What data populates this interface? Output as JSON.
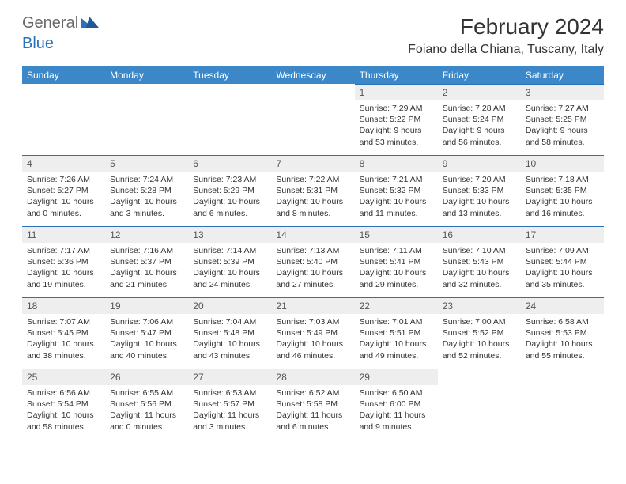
{
  "brand": {
    "part1": "General",
    "part2": "Blue"
  },
  "title": "February 2024",
  "location": "Foiano della Chiana, Tuscany, Italy",
  "colors": {
    "header_bg": "#3b87c8",
    "header_text": "#ffffff",
    "daynum_bg": "#eeeeee",
    "daynum_border": "#2a71b8",
    "body_text": "#333333",
    "logo_gray": "#6a6a6a",
    "logo_blue": "#2a71b8"
  },
  "day_headers": [
    "Sunday",
    "Monday",
    "Tuesday",
    "Wednesday",
    "Thursday",
    "Friday",
    "Saturday"
  ],
  "weeks": [
    [
      null,
      null,
      null,
      null,
      {
        "n": "1",
        "sunrise": "7:29 AM",
        "sunset": "5:22 PM",
        "daylight": "9 hours and 53 minutes."
      },
      {
        "n": "2",
        "sunrise": "7:28 AM",
        "sunset": "5:24 PM",
        "daylight": "9 hours and 56 minutes."
      },
      {
        "n": "3",
        "sunrise": "7:27 AM",
        "sunset": "5:25 PM",
        "daylight": "9 hours and 58 minutes."
      }
    ],
    [
      {
        "n": "4",
        "sunrise": "7:26 AM",
        "sunset": "5:27 PM",
        "daylight": "10 hours and 0 minutes."
      },
      {
        "n": "5",
        "sunrise": "7:24 AM",
        "sunset": "5:28 PM",
        "daylight": "10 hours and 3 minutes."
      },
      {
        "n": "6",
        "sunrise": "7:23 AM",
        "sunset": "5:29 PM",
        "daylight": "10 hours and 6 minutes."
      },
      {
        "n": "7",
        "sunrise": "7:22 AM",
        "sunset": "5:31 PM",
        "daylight": "10 hours and 8 minutes."
      },
      {
        "n": "8",
        "sunrise": "7:21 AM",
        "sunset": "5:32 PM",
        "daylight": "10 hours and 11 minutes."
      },
      {
        "n": "9",
        "sunrise": "7:20 AM",
        "sunset": "5:33 PM",
        "daylight": "10 hours and 13 minutes."
      },
      {
        "n": "10",
        "sunrise": "7:18 AM",
        "sunset": "5:35 PM",
        "daylight": "10 hours and 16 minutes."
      }
    ],
    [
      {
        "n": "11",
        "sunrise": "7:17 AM",
        "sunset": "5:36 PM",
        "daylight": "10 hours and 19 minutes."
      },
      {
        "n": "12",
        "sunrise": "7:16 AM",
        "sunset": "5:37 PM",
        "daylight": "10 hours and 21 minutes."
      },
      {
        "n": "13",
        "sunrise": "7:14 AM",
        "sunset": "5:39 PM",
        "daylight": "10 hours and 24 minutes."
      },
      {
        "n": "14",
        "sunrise": "7:13 AM",
        "sunset": "5:40 PM",
        "daylight": "10 hours and 27 minutes."
      },
      {
        "n": "15",
        "sunrise": "7:11 AM",
        "sunset": "5:41 PM",
        "daylight": "10 hours and 29 minutes."
      },
      {
        "n": "16",
        "sunrise": "7:10 AM",
        "sunset": "5:43 PM",
        "daylight": "10 hours and 32 minutes."
      },
      {
        "n": "17",
        "sunrise": "7:09 AM",
        "sunset": "5:44 PM",
        "daylight": "10 hours and 35 minutes."
      }
    ],
    [
      {
        "n": "18",
        "sunrise": "7:07 AM",
        "sunset": "5:45 PM",
        "daylight": "10 hours and 38 minutes."
      },
      {
        "n": "19",
        "sunrise": "7:06 AM",
        "sunset": "5:47 PM",
        "daylight": "10 hours and 40 minutes."
      },
      {
        "n": "20",
        "sunrise": "7:04 AM",
        "sunset": "5:48 PM",
        "daylight": "10 hours and 43 minutes."
      },
      {
        "n": "21",
        "sunrise": "7:03 AM",
        "sunset": "5:49 PM",
        "daylight": "10 hours and 46 minutes."
      },
      {
        "n": "22",
        "sunrise": "7:01 AM",
        "sunset": "5:51 PM",
        "daylight": "10 hours and 49 minutes."
      },
      {
        "n": "23",
        "sunrise": "7:00 AM",
        "sunset": "5:52 PM",
        "daylight": "10 hours and 52 minutes."
      },
      {
        "n": "24",
        "sunrise": "6:58 AM",
        "sunset": "5:53 PM",
        "daylight": "10 hours and 55 minutes."
      }
    ],
    [
      {
        "n": "25",
        "sunrise": "6:56 AM",
        "sunset": "5:54 PM",
        "daylight": "10 hours and 58 minutes."
      },
      {
        "n": "26",
        "sunrise": "6:55 AM",
        "sunset": "5:56 PM",
        "daylight": "11 hours and 0 minutes."
      },
      {
        "n": "27",
        "sunrise": "6:53 AM",
        "sunset": "5:57 PM",
        "daylight": "11 hours and 3 minutes."
      },
      {
        "n": "28",
        "sunrise": "6:52 AM",
        "sunset": "5:58 PM",
        "daylight": "11 hours and 6 minutes."
      },
      {
        "n": "29",
        "sunrise": "6:50 AM",
        "sunset": "6:00 PM",
        "daylight": "11 hours and 9 minutes."
      },
      null,
      null
    ]
  ],
  "labels": {
    "sunrise": "Sunrise:",
    "sunset": "Sunset:",
    "daylight": "Daylight:"
  }
}
